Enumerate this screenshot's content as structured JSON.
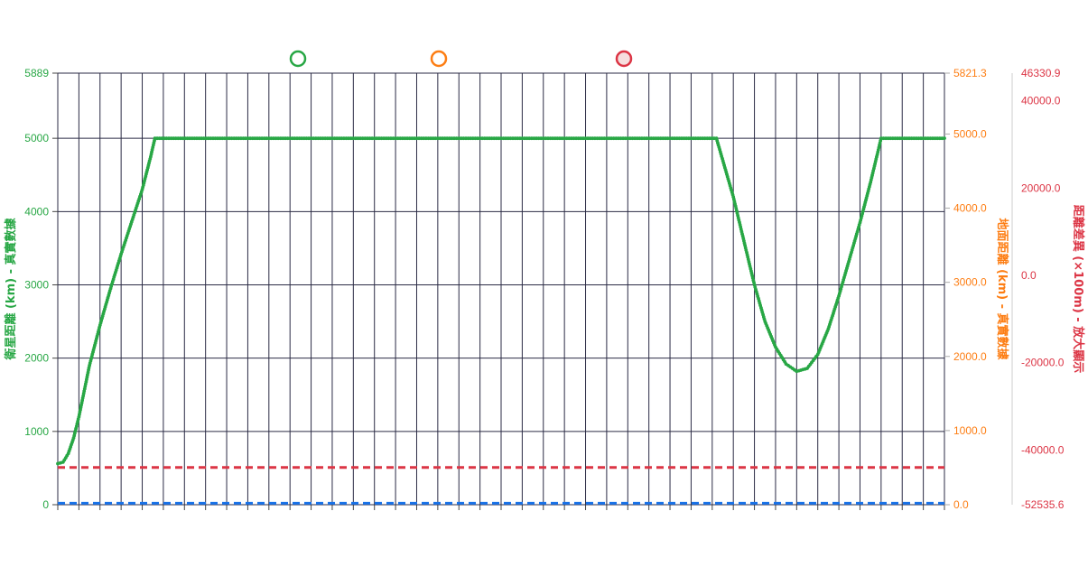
{
  "colors": {
    "satellite": "#28a745",
    "ground": "#fd7e14",
    "difference": "#dc3545",
    "blue_line": "#1a73e8",
    "grid": "#2b2b45",
    "axis_line": "#cccccc",
    "legend_fill_diff": "#f6dede"
  },
  "legend": {
    "items": [
      {
        "series": "satellite",
        "style": "open-circle"
      },
      {
        "series": "ground",
        "style": "open-circle"
      },
      {
        "series": "difference",
        "style": "filled-circle"
      }
    ]
  },
  "chart_data": {
    "type": "line",
    "grid": true,
    "x_category_count": 43,
    "y_axes": {
      "left": {
        "title": "衛星距離 (km) - 真實數據",
        "min": 0,
        "max": 5889,
        "ticks": [
          "0",
          "1000",
          "2000",
          "3000",
          "4000",
          "5000",
          "5889"
        ]
      },
      "right_ground": {
        "title": "地面距離 (km) - 真實數據",
        "min": 0,
        "max": 5821.3,
        "ticks": [
          "0.0",
          "1000.0",
          "2000.0",
          "3000.0",
          "4000.0",
          "5000.0",
          "5821.3"
        ]
      },
      "right_difference": {
        "title": "距離差異 (×100m) - 放大顯示",
        "min": -52535.6,
        "max": 46330.9,
        "ticks": [
          "-52535.6",
          "-40000.0",
          "-20000.0",
          "0.0",
          "20000.0",
          "40000.0",
          "46330.9"
        ]
      }
    },
    "series": [
      {
        "key": "satellite",
        "axis": "left",
        "style": "solid-points",
        "points": [
          [
            0.0,
            560
          ],
          [
            0.25,
            580
          ],
          [
            0.5,
            700
          ],
          [
            0.75,
            910
          ],
          [
            1.0,
            1200
          ],
          [
            1.5,
            1900
          ],
          [
            2.0,
            2450
          ],
          [
            2.5,
            2950
          ],
          [
            3.0,
            3420
          ],
          [
            3.5,
            3860
          ],
          [
            4.0,
            4300
          ],
          [
            4.4,
            4750
          ],
          [
            4.6,
            5000
          ],
          [
            10.0,
            5000
          ],
          [
            20.0,
            5000
          ],
          [
            30.0,
            5000
          ],
          [
            31.2,
            5000
          ],
          [
            32.0,
            4200
          ],
          [
            32.5,
            3600
          ],
          [
            33.0,
            3000
          ],
          [
            33.5,
            2500
          ],
          [
            34.0,
            2150
          ],
          [
            34.5,
            1920
          ],
          [
            35.0,
            1820
          ],
          [
            35.5,
            1860
          ],
          [
            36.0,
            2050
          ],
          [
            36.5,
            2400
          ],
          [
            37.0,
            2850
          ],
          [
            37.5,
            3350
          ],
          [
            38.0,
            3850
          ],
          [
            38.5,
            4400
          ],
          [
            39.0,
            5000
          ],
          [
            42.0,
            5000
          ]
        ]
      },
      {
        "key": "difference",
        "axis": "right_difference",
        "style": "dashed",
        "points": [
          [
            0,
            -44000
          ],
          [
            42,
            -44000
          ]
        ]
      },
      {
        "key": "ground",
        "axis": "right_ground",
        "style": "dashed",
        "color_key": "blue_line",
        "points": [
          [
            0,
            20
          ],
          [
            42,
            20
          ]
        ]
      }
    ]
  }
}
